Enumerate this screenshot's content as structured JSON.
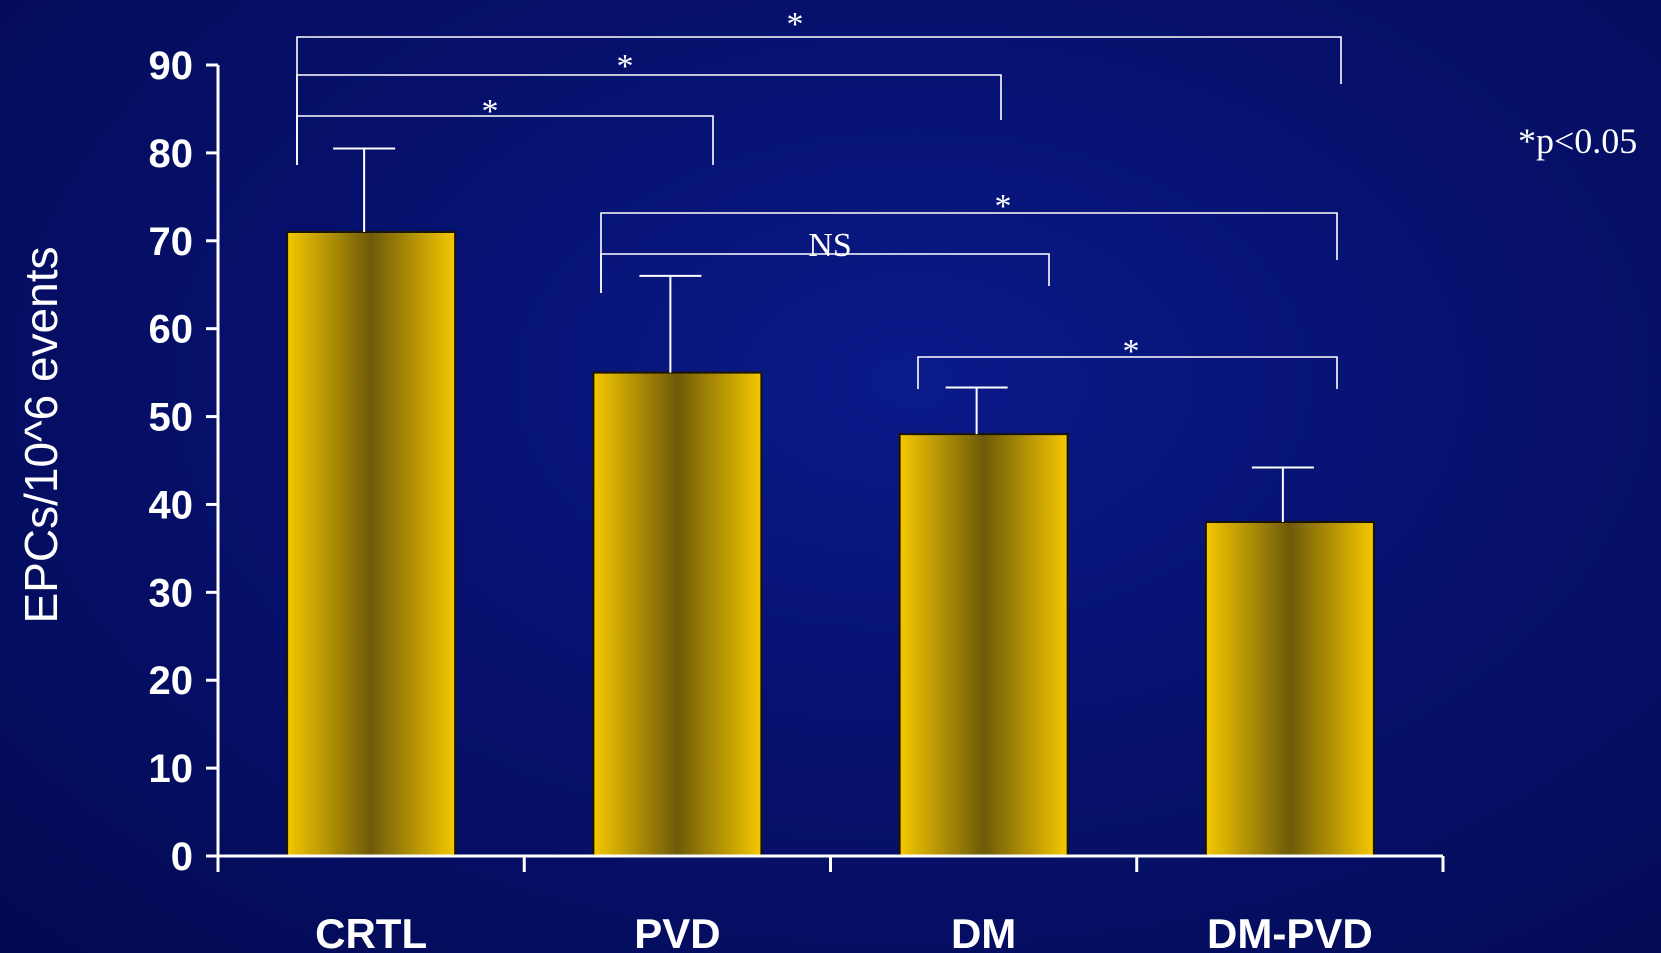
{
  "chart_data": {
    "type": "bar",
    "categories": [
      "CRTL",
      "PVD",
      "DM",
      "DM-PVD"
    ],
    "values": [
      71,
      55,
      48,
      38
    ],
    "error_upper": [
      80.5,
      66,
      53.3,
      44.2
    ],
    "ylabel": "EPCs/10^6 events",
    "xlabel": "",
    "ylim": [
      0,
      90
    ],
    "yticks": [
      0,
      10,
      20,
      30,
      40,
      50,
      60,
      70,
      80,
      90
    ],
    "grid": false,
    "significance": [
      {
        "from": "CRTL",
        "to": "DM-PVD",
        "label": "*"
      },
      {
        "from": "CRTL",
        "to": "DM",
        "label": "*"
      },
      {
        "from": "CRTL",
        "to": "PVD",
        "label": "*"
      },
      {
        "from": "PVD",
        "to": "DM-PVD",
        "label": "*"
      },
      {
        "from": "PVD",
        "to": "DM",
        "label": "NS"
      },
      {
        "from": "DM",
        "to": "DM-PVD",
        "label": "*"
      }
    ],
    "note": "*p<0.05",
    "colors": {
      "background": "#06116e",
      "bar_light": "#f5c800",
      "bar_dark": "#6e5a0a",
      "axis": "#ffffff",
      "text": "#ffffff"
    }
  }
}
